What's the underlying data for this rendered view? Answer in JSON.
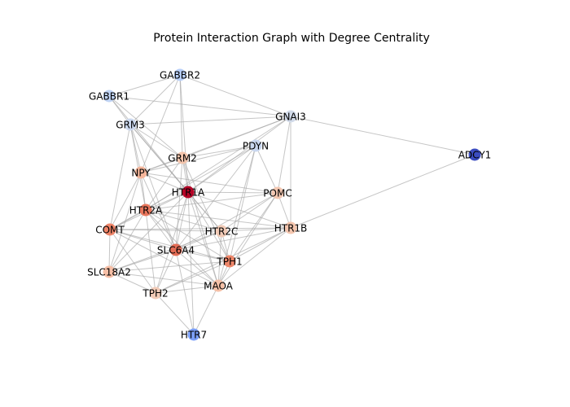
{
  "title": "Protein Interaction Graph with Degree Centrality",
  "nodes": [
    {
      "id": "GABBR2",
      "color": "#b9d0f9"
    },
    {
      "id": "GABBR1",
      "color": "#c0d4f5"
    },
    {
      "id": "GRM3",
      "color": "#cbd8ee"
    },
    {
      "id": "GNAI3",
      "color": "#d1dae9"
    },
    {
      "id": "PDYN",
      "color": "#c9d7f0"
    },
    {
      "id": "ADCY1",
      "color": "#3b4cc0"
    },
    {
      "id": "GRM2",
      "color": "#f4c5ad"
    },
    {
      "id": "NPY",
      "color": "#f5b69b"
    },
    {
      "id": "HTR1A",
      "color": "#b40426"
    },
    {
      "id": "POMC",
      "color": "#f3c7b1"
    },
    {
      "id": "HTR2A",
      "color": "#e8765c"
    },
    {
      "id": "COMT",
      "color": "#ee8468"
    },
    {
      "id": "HTR2C",
      "color": "#f2cbb7"
    },
    {
      "id": "HTR1B",
      "color": "#f4c6af"
    },
    {
      "id": "SLC6A4",
      "color": "#e36c55"
    },
    {
      "id": "TPH1",
      "color": "#ee8669"
    },
    {
      "id": "SLC18A2",
      "color": "#f6bfa6"
    },
    {
      "id": "MAOA",
      "color": "#f5c0a7"
    },
    {
      "id": "TPH2",
      "color": "#f2cbb7"
    },
    {
      "id": "HTR7",
      "color": "#7b9ff9"
    }
  ],
  "edges": [
    [
      "GABBR2",
      "GABBR1"
    ],
    [
      "GABBR2",
      "GRM3"
    ],
    [
      "GABBR2",
      "GNAI3"
    ],
    [
      "GABBR2",
      "GRM2"
    ],
    [
      "GABBR2",
      "NPY"
    ],
    [
      "GABBR2",
      "HTR1A"
    ],
    [
      "GABBR1",
      "GRM3"
    ],
    [
      "GABBR1",
      "GNAI3"
    ],
    [
      "GABBR1",
      "GRM2"
    ],
    [
      "GABBR1",
      "HTR1A"
    ],
    [
      "GRM3",
      "GNAI3"
    ],
    [
      "GRM3",
      "GRM2"
    ],
    [
      "GRM3",
      "NPY"
    ],
    [
      "GRM3",
      "HTR1A"
    ],
    [
      "GRM3",
      "HTR2A"
    ],
    [
      "GRM3",
      "COMT"
    ],
    [
      "GRM3",
      "SLC6A4"
    ],
    [
      "GRM3",
      "HTR2C"
    ],
    [
      "GNAI3",
      "ADCY1"
    ],
    [
      "GNAI3",
      "GRM2"
    ],
    [
      "GNAI3",
      "NPY"
    ],
    [
      "GNAI3",
      "HTR1A"
    ],
    [
      "GNAI3",
      "HTR1B"
    ],
    [
      "GNAI3",
      "POMC"
    ],
    [
      "GNAI3",
      "HTR2A"
    ],
    [
      "PDYN",
      "NPY"
    ],
    [
      "PDYN",
      "HTR1A"
    ],
    [
      "PDYN",
      "POMC"
    ],
    [
      "PDYN",
      "SLC6A4"
    ],
    [
      "PDYN",
      "TPH1"
    ],
    [
      "PDYN",
      "MAOA"
    ],
    [
      "PDYN",
      "COMT"
    ],
    [
      "PDYN",
      "GRM2"
    ],
    [
      "ADCY1",
      "HTR1B"
    ],
    [
      "GRM2",
      "HTR1A"
    ],
    [
      "GRM2",
      "NPY"
    ],
    [
      "GRM2",
      "SLC6A4"
    ],
    [
      "GRM2",
      "TPH1"
    ],
    [
      "GRM2",
      "HTR2A"
    ],
    [
      "GRM2",
      "MAOA"
    ],
    [
      "NPY",
      "HTR1A"
    ],
    [
      "NPY",
      "HTR2A"
    ],
    [
      "NPY",
      "COMT"
    ],
    [
      "NPY",
      "SLC6A4"
    ],
    [
      "NPY",
      "POMC"
    ],
    [
      "NPY",
      "SLC18A2"
    ],
    [
      "HTR1A",
      "POMC"
    ],
    [
      "HTR1A",
      "HTR2A"
    ],
    [
      "HTR1A",
      "COMT"
    ],
    [
      "HTR1A",
      "HTR2C"
    ],
    [
      "HTR1A",
      "HTR1B"
    ],
    [
      "HTR1A",
      "SLC6A4"
    ],
    [
      "HTR1A",
      "TPH1"
    ],
    [
      "HTR1A",
      "MAOA"
    ],
    [
      "HTR1A",
      "TPH2"
    ],
    [
      "HTR1A",
      "SLC18A2"
    ],
    [
      "HTR1A",
      "HTR7"
    ],
    [
      "POMC",
      "HTR1B"
    ],
    [
      "POMC",
      "HTR2A"
    ],
    [
      "POMC",
      "SLC6A4"
    ],
    [
      "POMC",
      "TPH1"
    ],
    [
      "POMC",
      "MAOA"
    ],
    [
      "POMC",
      "HTR2C"
    ],
    [
      "HTR2A",
      "COMT"
    ],
    [
      "HTR2A",
      "SLC6A4"
    ],
    [
      "HTR2A",
      "HTR2C"
    ],
    [
      "HTR2A",
      "TPH1"
    ],
    [
      "HTR2A",
      "SLC18A2"
    ],
    [
      "HTR2A",
      "TPH2"
    ],
    [
      "HTR2A",
      "MAOA"
    ],
    [
      "HTR2A",
      "HTR1B"
    ],
    [
      "COMT",
      "SLC6A4"
    ],
    [
      "COMT",
      "HTR2C"
    ],
    [
      "COMT",
      "SLC18A2"
    ],
    [
      "COMT",
      "TPH2"
    ],
    [
      "COMT",
      "MAOA"
    ],
    [
      "COMT",
      "TPH1"
    ],
    [
      "COMT",
      "HTR1B"
    ],
    [
      "HTR2C",
      "SLC6A4"
    ],
    [
      "HTR2C",
      "TPH1"
    ],
    [
      "HTR2C",
      "MAOA"
    ],
    [
      "HTR2C",
      "HTR1B"
    ],
    [
      "HTR2C",
      "SLC18A2"
    ],
    [
      "HTR1B",
      "SLC6A4"
    ],
    [
      "HTR1B",
      "TPH1"
    ],
    [
      "HTR1B",
      "MAOA"
    ],
    [
      "HTR1B",
      "TPH2"
    ],
    [
      "SLC6A4",
      "TPH1"
    ],
    [
      "SLC6A4",
      "SLC18A2"
    ],
    [
      "SLC6A4",
      "MAOA"
    ],
    [
      "SLC6A4",
      "TPH2"
    ],
    [
      "SLC6A4",
      "HTR7"
    ],
    [
      "TPH1",
      "MAOA"
    ],
    [
      "TPH1",
      "TPH2"
    ],
    [
      "TPH1",
      "SLC18A2"
    ],
    [
      "SLC18A2",
      "TPH2"
    ],
    [
      "SLC18A2",
      "MAOA"
    ],
    [
      "MAOA",
      "TPH2"
    ],
    [
      "MAOA",
      "HTR7"
    ],
    [
      "TPH2",
      "HTR7"
    ]
  ]
}
